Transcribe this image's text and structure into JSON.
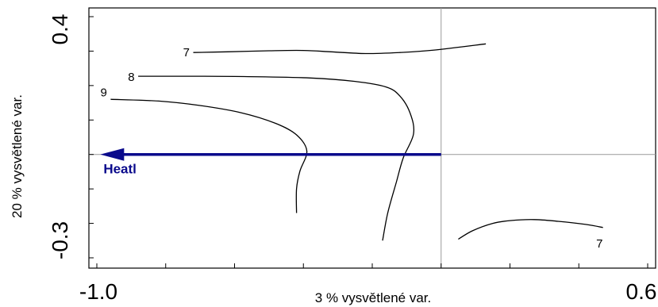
{
  "chart_data": {
    "type": "biplot",
    "xlabel": "3 % vysvětlené var.",
    "ylabel": "20 % vysvětlené var.",
    "xlim": [
      -1.0,
      0.6
    ],
    "ylim": [
      -0.3,
      0.4
    ],
    "x_tick_labels": [
      "-1.0",
      "0.6"
    ],
    "y_tick_labels": [
      "0.4",
      "-0.3"
    ],
    "x_ticks_minor": [
      -1.0,
      -0.8,
      -0.6,
      -0.4,
      -0.2,
      0.0,
      0.2,
      0.4,
      0.6
    ],
    "y_ticks_minor": [
      -0.3,
      -0.2,
      -0.1,
      0.0,
      0.1,
      0.2,
      0.3,
      0.4
    ],
    "reference_lines": {
      "x": 0.0,
      "y": 0.0
    },
    "arrow": {
      "label": "Heatl",
      "from": [
        0.0,
        0.0
      ],
      "to": [
        -0.99,
        0.0
      ],
      "color": "#0a0a8c"
    },
    "contours": [
      {
        "label": "7",
        "label_at": [
          -0.74,
          0.296
        ],
        "points": [
          [
            -0.72,
            0.296
          ],
          [
            -0.62,
            0.298
          ],
          [
            -0.5,
            0.301
          ],
          [
            -0.4,
            0.302
          ],
          [
            -0.32,
            0.298
          ],
          [
            -0.22,
            0.293
          ],
          [
            -0.12,
            0.296
          ],
          [
            -0.02,
            0.303
          ],
          [
            0.13,
            0.321
          ]
        ]
      },
      {
        "label": "8",
        "label_at": [
          -0.9,
          0.225
        ],
        "points": [
          [
            -0.88,
            0.227
          ],
          [
            -0.72,
            0.227
          ],
          [
            -0.56,
            0.226
          ],
          [
            -0.38,
            0.222
          ],
          [
            -0.25,
            0.212
          ],
          [
            -0.16,
            0.196
          ],
          [
            -0.12,
            0.17
          ],
          [
            -0.09,
            0.12
          ],
          [
            -0.08,
            0.06
          ],
          [
            -0.11,
            -0.01
          ],
          [
            -0.13,
            -0.08
          ],
          [
            -0.155,
            -0.17
          ],
          [
            -0.17,
            -0.25
          ]
        ]
      },
      {
        "label": "9",
        "label_at": [
          -0.98,
          0.18
        ],
        "points": [
          [
            -0.96,
            0.16
          ],
          [
            -0.82,
            0.155
          ],
          [
            -0.7,
            0.142
          ],
          [
            -0.58,
            0.121
          ],
          [
            -0.48,
            0.09
          ],
          [
            -0.42,
            0.057
          ],
          [
            -0.39,
            0.01
          ],
          [
            -0.41,
            -0.048
          ],
          [
            -0.42,
            -0.1
          ],
          [
            -0.42,
            -0.17
          ]
        ]
      },
      {
        "label": "7",
        "label_at": [
          0.46,
          -0.259
        ],
        "points": [
          [
            0.05,
            -0.246
          ],
          [
            0.09,
            -0.222
          ],
          [
            0.15,
            -0.2
          ],
          [
            0.2,
            -0.192
          ],
          [
            0.27,
            -0.189
          ],
          [
            0.34,
            -0.194
          ],
          [
            0.42,
            -0.203
          ],
          [
            0.47,
            -0.212
          ]
        ]
      }
    ]
  }
}
